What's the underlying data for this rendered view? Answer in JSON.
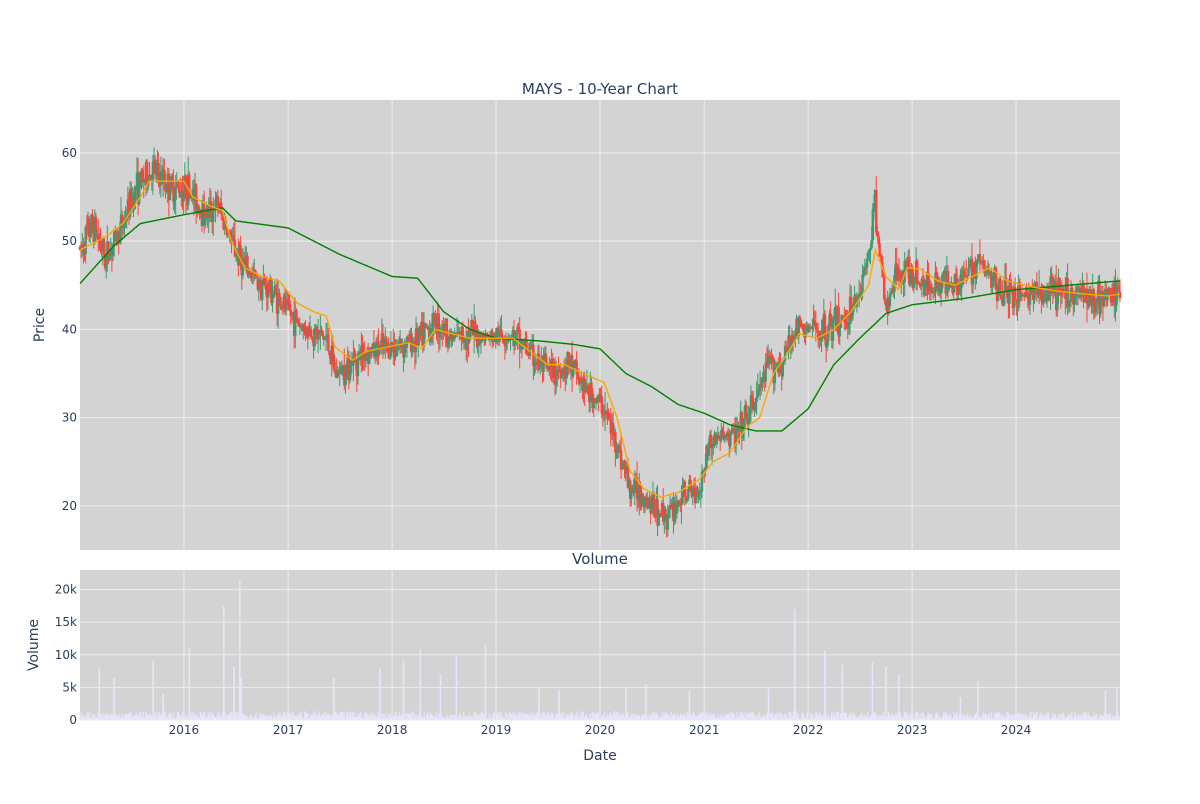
{
  "chart_data": [
    {
      "type": "candlestick",
      "title": "MAYS - 10-Year Chart",
      "ylabel": "Price",
      "ylim": [
        15,
        66
      ],
      "yticks": [
        20,
        30,
        40,
        50,
        60
      ],
      "xlim": [
        "2015-01-01",
        "2024-12-31"
      ],
      "grid": true,
      "legend": "none",
      "colors": {
        "up": "#3d9970",
        "down": "#ff4136",
        "ma_short": "#ffa500",
        "ma_long": "#008000",
        "plot_bg": "#d3d3d3",
        "grid": "#eeeeee"
      },
      "price_keypoints": [
        [
          "2015-01-01",
          49
        ],
        [
          "2015-02-15",
          52
        ],
        [
          "2015-04-01",
          48
        ],
        [
          "2015-06-01",
          52
        ],
        [
          "2015-07-15",
          56
        ],
        [
          "2015-09-15",
          58
        ],
        [
          "2015-11-15",
          56
        ],
        [
          "2016-01-15",
          56
        ],
        [
          "2016-03-15",
          53
        ],
        [
          "2016-05-01",
          54
        ],
        [
          "2016-06-15",
          50
        ],
        [
          "2016-08-01",
          47
        ],
        [
          "2016-09-15",
          45.5
        ],
        [
          "2016-11-15",
          44
        ],
        [
          "2017-01-01",
          42
        ],
        [
          "2017-03-01",
          40
        ],
        [
          "2017-05-15",
          39
        ],
        [
          "2017-06-15",
          35
        ],
        [
          "2017-08-01",
          36
        ],
        [
          "2017-10-01",
          37.5
        ],
        [
          "2018-01-01",
          38
        ],
        [
          "2018-03-01",
          38.5
        ],
        [
          "2018-04-15",
          39
        ],
        [
          "2018-06-01",
          41
        ],
        [
          "2018-08-01",
          39
        ],
        [
          "2018-10-01",
          39.5
        ],
        [
          "2018-12-15",
          39
        ],
        [
          "2019-02-15",
          39.5
        ],
        [
          "2019-04-15",
          38
        ],
        [
          "2019-06-01",
          36
        ],
        [
          "2019-07-15",
          35
        ],
        [
          "2019-09-15",
          36
        ],
        [
          "2019-11-15",
          33
        ],
        [
          "2020-01-15",
          31
        ],
        [
          "2020-03-01",
          27
        ],
        [
          "2020-04-15",
          22
        ],
        [
          "2020-06-01",
          21.5
        ],
        [
          "2020-07-15",
          19.5
        ],
        [
          "2020-09-01",
          19
        ],
        [
          "2020-10-15",
          21
        ],
        [
          "2020-12-15",
          22
        ],
        [
          "2021-01-15",
          27
        ],
        [
          "2021-03-01",
          28
        ],
        [
          "2021-05-01",
          28
        ],
        [
          "2021-07-01",
          32
        ],
        [
          "2021-08-15",
          36
        ],
        [
          "2021-10-01",
          36
        ],
        [
          "2021-11-15",
          40
        ],
        [
          "2022-01-01",
          40
        ],
        [
          "2022-03-01",
          40
        ],
        [
          "2022-05-01",
          41
        ],
        [
          "2022-06-15",
          43
        ],
        [
          "2022-08-01",
          48
        ],
        [
          "2022-08-20",
          55
        ],
        [
          "2022-10-01",
          42
        ],
        [
          "2022-11-15",
          47
        ],
        [
          "2023-01-01",
          46
        ],
        [
          "2023-03-01",
          45
        ],
        [
          "2023-05-01",
          45.5
        ],
        [
          "2023-07-15",
          46
        ],
        [
          "2023-08-15",
          48
        ],
        [
          "2023-10-01",
          46
        ],
        [
          "2023-12-01",
          44
        ],
        [
          "2024-03-01",
          44
        ],
        [
          "2024-06-01",
          44
        ],
        [
          "2024-09-01",
          44
        ],
        [
          "2024-11-15",
          43.5
        ],
        [
          "2024-12-31",
          44
        ]
      ],
      "ma_short_keypoints": [
        [
          "2015-01-01",
          49
        ],
        [
          "2015-04-01",
          50.5
        ],
        [
          "2015-06-01",
          52
        ],
        [
          "2015-08-01",
          55
        ],
        [
          "2015-09-01",
          56.8
        ],
        [
          "2016-01-01",
          56.8
        ],
        [
          "2016-02-01",
          55
        ],
        [
          "2016-04-01",
          54
        ],
        [
          "2016-05-15",
          53.5
        ],
        [
          "2016-06-15",
          50
        ],
        [
          "2016-08-01",
          47
        ],
        [
          "2016-10-01",
          46
        ],
        [
          "2016-12-01",
          45.5
        ],
        [
          "2017-02-01",
          43
        ],
        [
          "2017-04-01",
          42
        ],
        [
          "2017-05-15",
          41.5
        ],
        [
          "2017-06-15",
          38
        ],
        [
          "2017-08-15",
          36.5
        ],
        [
          "2017-10-01",
          37.5
        ],
        [
          "2017-12-15",
          38
        ],
        [
          "2018-03-01",
          38.5
        ],
        [
          "2018-04-15",
          37.8
        ],
        [
          "2018-06-01",
          40
        ],
        [
          "2018-08-01",
          39.5
        ],
        [
          "2018-10-01",
          39
        ],
        [
          "2018-12-01",
          39
        ],
        [
          "2019-03-01",
          39
        ],
        [
          "2019-05-01",
          37.5
        ],
        [
          "2019-07-01",
          36
        ],
        [
          "2019-09-01",
          36
        ],
        [
          "2019-11-01",
          35
        ],
        [
          "2020-01-15",
          34
        ],
        [
          "2020-03-01",
          30
        ],
        [
          "2020-04-15",
          24
        ],
        [
          "2020-06-01",
          22
        ],
        [
          "2020-08-01",
          21
        ],
        [
          "2020-10-01",
          21.5
        ],
        [
          "2020-12-15",
          23
        ],
        [
          "2021-02-01",
          25
        ],
        [
          "2021-04-01",
          26
        ],
        [
          "2021-06-01",
          29
        ],
        [
          "2021-07-15",
          30
        ],
        [
          "2021-09-01",
          35
        ],
        [
          "2021-10-15",
          37
        ],
        [
          "2021-12-01",
          39.5
        ],
        [
          "2022-02-01",
          39
        ],
        [
          "2022-04-01",
          40
        ],
        [
          "2022-06-01",
          42
        ],
        [
          "2022-08-01",
          45
        ],
        [
          "2022-08-25",
          49
        ],
        [
          "2022-10-01",
          46
        ],
        [
          "2022-11-15",
          44.5
        ],
        [
          "2022-12-15",
          47
        ],
        [
          "2023-02-01",
          46.8
        ],
        [
          "2023-04-01",
          45.5
        ],
        [
          "2023-06-01",
          45
        ],
        [
          "2023-08-01",
          46
        ],
        [
          "2023-10-01",
          47
        ],
        [
          "2023-12-01",
          45.5
        ],
        [
          "2024-03-01",
          44.8
        ],
        [
          "2024-06-01",
          44.3
        ],
        [
          "2024-09-01",
          44
        ],
        [
          "2024-11-15",
          43.8
        ],
        [
          "2024-12-31",
          44
        ]
      ],
      "ma_long_keypoints": [
        [
          "2015-01-01",
          45.2
        ],
        [
          "2015-05-01",
          49.5
        ],
        [
          "2015-08-01",
          52
        ],
        [
          "2016-01-01",
          53
        ],
        [
          "2016-05-15",
          53.8
        ],
        [
          "2016-07-01",
          52.3
        ],
        [
          "2017-01-01",
          51.5
        ],
        [
          "2017-07-01",
          48.5
        ],
        [
          "2018-01-01",
          46
        ],
        [
          "2018-04-01",
          45.8
        ],
        [
          "2018-07-01",
          42
        ],
        [
          "2018-10-01",
          40
        ],
        [
          "2019-01-01",
          39
        ],
        [
          "2019-06-01",
          38.7
        ],
        [
          "2019-10-01",
          38.3
        ],
        [
          "2020-01-01",
          37.8
        ],
        [
          "2020-04-01",
          35
        ],
        [
          "2020-07-01",
          33.5
        ],
        [
          "2020-10-01",
          31.5
        ],
        [
          "2021-01-01",
          30.5
        ],
        [
          "2021-04-01",
          29.2
        ],
        [
          "2021-07-01",
          28.5
        ],
        [
          "2021-10-01",
          28.5
        ],
        [
          "2022-01-01",
          31
        ],
        [
          "2022-04-01",
          36
        ],
        [
          "2022-07-01",
          39
        ],
        [
          "2022-10-01",
          41.8
        ],
        [
          "2023-01-01",
          42.8
        ],
        [
          "2023-07-01",
          43.5
        ],
        [
          "2024-01-01",
          44.5
        ],
        [
          "2024-07-01",
          45
        ],
        [
          "2024-12-31",
          45.5
        ]
      ]
    },
    {
      "type": "bar",
      "title": "Volume",
      "xlabel": "Date",
      "ylabel": "Volume",
      "ylim": [
        0,
        23000
      ],
      "yticks": [
        0,
        5000,
        10000,
        15000,
        20000
      ],
      "ytick_labels": [
        "0",
        "5k",
        "10k",
        "15k",
        "20k"
      ],
      "xticks": [
        "2016-01-01",
        "2017-01-01",
        "2018-01-01",
        "2019-01-01",
        "2020-01-01",
        "2021-01-01",
        "2022-01-01",
        "2023-01-01",
        "2024-01-01"
      ],
      "xtick_labels": [
        "2016",
        "2017",
        "2018",
        "2019",
        "2020",
        "2021",
        "2022",
        "2023",
        "2024"
      ],
      "colors": {
        "bar": "#e6e6fa",
        "plot_bg": "#d3d3d3",
        "grid": "#eeeeee"
      },
      "volume_spikes": [
        [
          "2015-03-10",
          8000
        ],
        [
          "2015-05-01",
          6500
        ],
        [
          "2015-09-15",
          9200
        ],
        [
          "2015-10-20",
          4000
        ],
        [
          "2016-01-20",
          11000
        ],
        [
          "2016-05-20",
          17500
        ],
        [
          "2016-06-25",
          8200
        ],
        [
          "2016-07-15",
          21500
        ],
        [
          "2016-07-20",
          6500
        ],
        [
          "2017-06-10",
          6500
        ],
        [
          "2017-11-20",
          8000
        ],
        [
          "2018-02-10",
          9200
        ],
        [
          "2018-04-10",
          10800
        ],
        [
          "2018-06-20",
          7000
        ],
        [
          "2018-08-15",
          10000
        ],
        [
          "2018-11-25",
          11500
        ],
        [
          "2019-06-01",
          5000
        ],
        [
          "2019-08-10",
          4500
        ],
        [
          "2020-04-01",
          5000
        ],
        [
          "2020-06-10",
          5500
        ],
        [
          "2020-11-10",
          4500
        ],
        [
          "2021-08-15",
          4800
        ],
        [
          "2021-11-15",
          17000
        ],
        [
          "2022-03-01",
          10600
        ],
        [
          "2022-05-01",
          8500
        ],
        [
          "2022-08-15",
          8800
        ],
        [
          "2022-10-01",
          8200
        ],
        [
          "2022-11-15",
          7000
        ],
        [
          "2023-06-20",
          3500
        ],
        [
          "2023-08-20",
          6000
        ],
        [
          "2024-11-10",
          4500
        ],
        [
          "2024-12-20",
          5000
        ]
      ]
    }
  ]
}
